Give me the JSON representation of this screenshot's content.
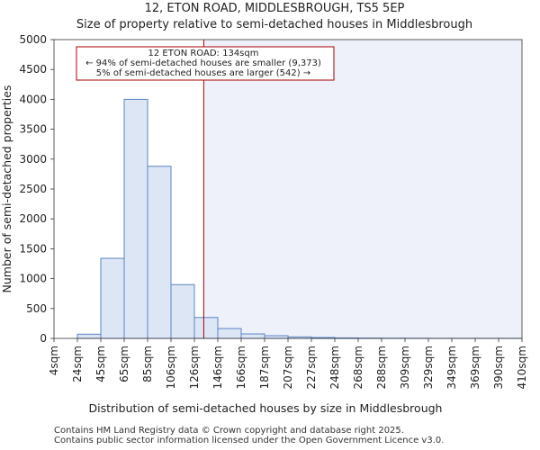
{
  "chart_data": {
    "type": "bar",
    "title": "12, ETON ROAD, MIDDLESBROUGH, TS5 5EP",
    "subtitle": "Size of property relative to semi-detached houses in Middlesbrough",
    "xlabel": "Distribution of semi-detached houses by size in Middlesbrough",
    "ylabel": "Number of semi-detached properties",
    "ylim": [
      0,
      5000
    ],
    "yticks": [
      0,
      500,
      1000,
      1500,
      2000,
      2500,
      3000,
      3500,
      4000,
      4500,
      5000
    ],
    "bin_edges": [
      4,
      24,
      45,
      65,
      85,
      106,
      126,
      146,
      166,
      187,
      207,
      227,
      248,
      268,
      288,
      309,
      329,
      349,
      369,
      390,
      410
    ],
    "tick_labels": [
      "4sqm",
      "24sqm",
      "45sqm",
      "65sqm",
      "85sqm",
      "106sqm",
      "126sqm",
      "146sqm",
      "166sqm",
      "187sqm",
      "207sqm",
      "227sqm",
      "248sqm",
      "268sqm",
      "288sqm",
      "309sqm",
      "329sqm",
      "349sqm",
      "369sqm",
      "390sqm",
      "410sqm"
    ],
    "values": [
      0,
      70,
      1340,
      4000,
      2880,
      900,
      350,
      165,
      75,
      45,
      25,
      15,
      8,
      5,
      3,
      2,
      1,
      1,
      1,
      1
    ],
    "marker": {
      "value": 134,
      "color": "#aa0000"
    },
    "bar_color": "#dde6f5",
    "bar_edge_color": "#5b84c4",
    "highlight_color": "#eef1f9",
    "annotation": {
      "line1": "12 ETON ROAD: 134sqm",
      "line2": "← 94% of semi-detached houses are smaller (9,373)",
      "line3": "5% of semi-detached houses are larger (542) →"
    }
  },
  "footer": {
    "line1": "Contains HM Land Registry data © Crown copyright and database right 2025.",
    "line2": "Contains public sector information licensed under the Open Government Licence v3.0."
  }
}
